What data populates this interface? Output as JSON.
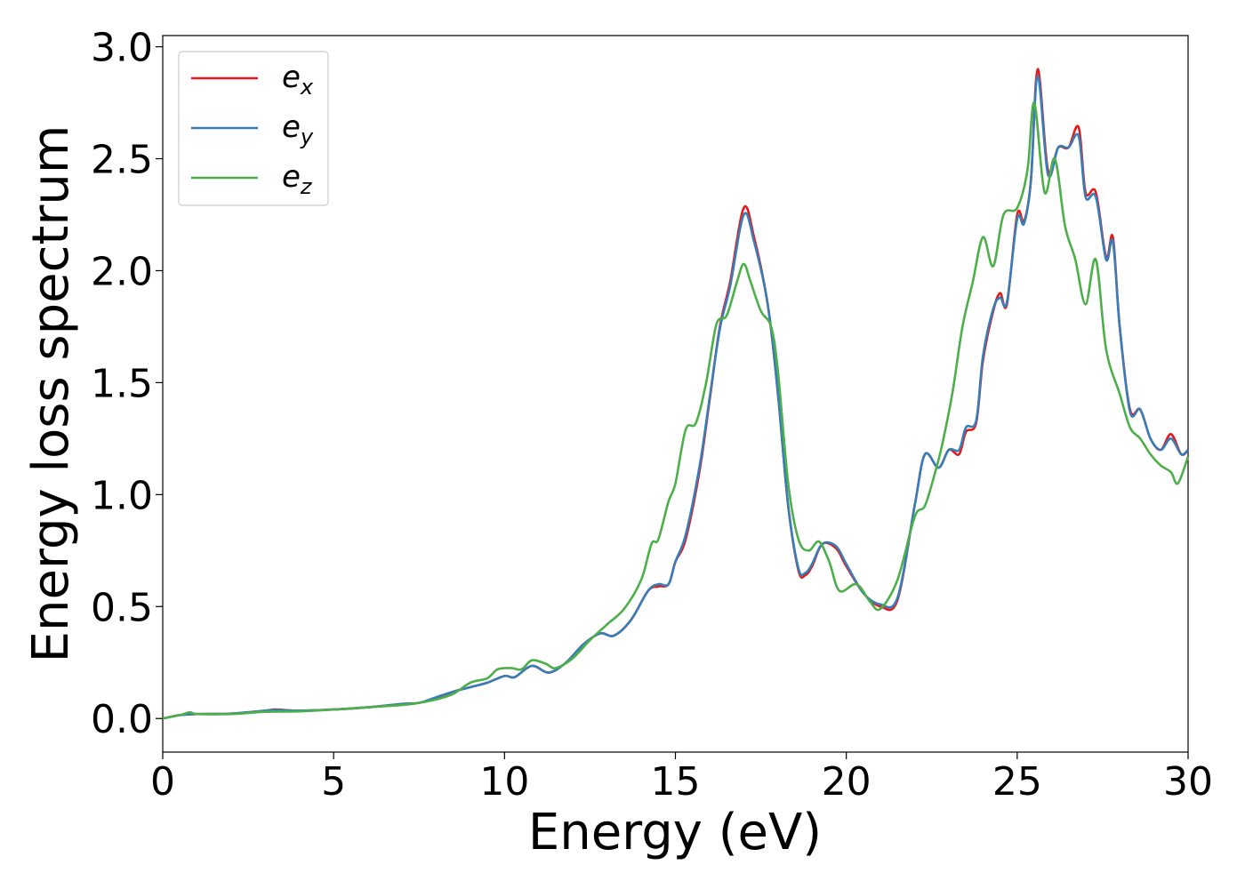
{
  "chart_data": {
    "type": "line",
    "xlabel": "Energy (eV)",
    "ylabel": "Energy loss spectrum",
    "xlim": [
      0,
      30
    ],
    "ylim": [
      -0.15,
      3.05
    ],
    "xticks": [
      0,
      5,
      10,
      15,
      20,
      25,
      30
    ],
    "yticks": [
      0.0,
      0.5,
      1.0,
      1.5,
      2.0,
      2.5,
      3.0
    ],
    "xtick_labels": [
      "0",
      "5",
      "10",
      "15",
      "20",
      "25",
      "30"
    ],
    "ytick_labels": [
      "0.0",
      "0.5",
      "1.0",
      "1.5",
      "2.0",
      "2.5",
      "3.0"
    ],
    "grid": false,
    "legend_position": "top-left",
    "series": [
      {
        "name": "e_x",
        "label_base": "e",
        "label_sub": "x",
        "color": "#e41a1c",
        "points": [
          [
            0,
            0.0
          ],
          [
            0.5,
            0.015
          ],
          [
            1,
            0.02
          ],
          [
            2,
            0.022
          ],
          [
            3,
            0.035
          ],
          [
            3.3,
            0.04
          ],
          [
            4,
            0.035
          ],
          [
            5,
            0.04
          ],
          [
            6,
            0.05
          ],
          [
            7,
            0.065
          ],
          [
            7.5,
            0.07
          ],
          [
            8,
            0.09
          ],
          [
            8.5,
            0.12
          ],
          [
            9,
            0.14
          ],
          [
            9.5,
            0.16
          ],
          [
            10,
            0.19
          ],
          [
            10.3,
            0.185
          ],
          [
            10.8,
            0.235
          ],
          [
            11.3,
            0.205
          ],
          [
            11.8,
            0.25
          ],
          [
            12.3,
            0.33
          ],
          [
            12.8,
            0.38
          ],
          [
            13.2,
            0.37
          ],
          [
            13.7,
            0.44
          ],
          [
            14.2,
            0.57
          ],
          [
            14.5,
            0.59
          ],
          [
            14.8,
            0.6
          ],
          [
            15.0,
            0.7
          ],
          [
            15.3,
            0.8
          ],
          [
            15.7,
            1.1
          ],
          [
            16.0,
            1.42
          ],
          [
            16.3,
            1.75
          ],
          [
            16.6,
            1.95
          ],
          [
            17.0,
            2.28
          ],
          [
            17.3,
            2.15
          ],
          [
            17.7,
            1.85
          ],
          [
            18.0,
            1.45
          ],
          [
            18.3,
            0.95
          ],
          [
            18.6,
            0.66
          ],
          [
            18.8,
            0.64
          ],
          [
            19.0,
            0.68
          ],
          [
            19.3,
            0.78
          ],
          [
            19.7,
            0.76
          ],
          [
            20.0,
            0.68
          ],
          [
            20.5,
            0.56
          ],
          [
            21.0,
            0.5
          ],
          [
            21.5,
            0.53
          ],
          [
            22.0,
            0.95
          ],
          [
            22.3,
            1.18
          ],
          [
            22.7,
            1.12
          ],
          [
            23.0,
            1.2
          ],
          [
            23.3,
            1.18
          ],
          [
            23.5,
            1.28
          ],
          [
            23.8,
            1.32
          ],
          [
            24.0,
            1.6
          ],
          [
            24.3,
            1.82
          ],
          [
            24.5,
            1.9
          ],
          [
            24.7,
            1.85
          ],
          [
            25.0,
            2.25
          ],
          [
            25.2,
            2.22
          ],
          [
            25.4,
            2.4
          ],
          [
            25.6,
            2.9
          ],
          [
            25.9,
            2.45
          ],
          [
            26.2,
            2.55
          ],
          [
            26.5,
            2.55
          ],
          [
            26.8,
            2.64
          ],
          [
            27.0,
            2.35
          ],
          [
            27.3,
            2.35
          ],
          [
            27.6,
            2.06
          ],
          [
            27.8,
            2.15
          ],
          [
            28.0,
            1.75
          ],
          [
            28.3,
            1.38
          ],
          [
            28.6,
            1.38
          ],
          [
            28.9,
            1.25
          ],
          [
            29.2,
            1.2
          ],
          [
            29.5,
            1.27
          ],
          [
            29.8,
            1.18
          ],
          [
            30,
            1.2
          ]
        ]
      },
      {
        "name": "e_y",
        "label_base": "e",
        "label_sub": "y",
        "color": "#377eb8",
        "points": [
          [
            0,
            0.0
          ],
          [
            0.5,
            0.015
          ],
          [
            1,
            0.02
          ],
          [
            2,
            0.022
          ],
          [
            3,
            0.035
          ],
          [
            3.3,
            0.038
          ],
          [
            4,
            0.035
          ],
          [
            5,
            0.04
          ],
          [
            6,
            0.05
          ],
          [
            7,
            0.065
          ],
          [
            7.5,
            0.07
          ],
          [
            8,
            0.095
          ],
          [
            8.5,
            0.12
          ],
          [
            9,
            0.14
          ],
          [
            9.5,
            0.16
          ],
          [
            10,
            0.19
          ],
          [
            10.3,
            0.185
          ],
          [
            10.8,
            0.235
          ],
          [
            11.3,
            0.205
          ],
          [
            11.8,
            0.25
          ],
          [
            12.3,
            0.33
          ],
          [
            12.8,
            0.38
          ],
          [
            13.2,
            0.37
          ],
          [
            13.7,
            0.44
          ],
          [
            14.2,
            0.57
          ],
          [
            14.5,
            0.6
          ],
          [
            14.8,
            0.6
          ],
          [
            15.0,
            0.7
          ],
          [
            15.3,
            0.82
          ],
          [
            15.7,
            1.12
          ],
          [
            16.0,
            1.43
          ],
          [
            16.3,
            1.74
          ],
          [
            16.6,
            1.93
          ],
          [
            17.0,
            2.25
          ],
          [
            17.3,
            2.13
          ],
          [
            17.7,
            1.85
          ],
          [
            18.0,
            1.45
          ],
          [
            18.3,
            0.95
          ],
          [
            18.6,
            0.67
          ],
          [
            18.8,
            0.65
          ],
          [
            19.0,
            0.69
          ],
          [
            19.3,
            0.78
          ],
          [
            19.7,
            0.77
          ],
          [
            20.0,
            0.69
          ],
          [
            20.5,
            0.56
          ],
          [
            21.0,
            0.51
          ],
          [
            21.5,
            0.54
          ],
          [
            22.0,
            0.95
          ],
          [
            22.3,
            1.18
          ],
          [
            22.7,
            1.12
          ],
          [
            23.0,
            1.2
          ],
          [
            23.3,
            1.2
          ],
          [
            23.5,
            1.3
          ],
          [
            23.8,
            1.33
          ],
          [
            24.0,
            1.62
          ],
          [
            24.3,
            1.83
          ],
          [
            24.5,
            1.88
          ],
          [
            24.7,
            1.86
          ],
          [
            25.0,
            2.23
          ],
          [
            25.2,
            2.21
          ],
          [
            25.4,
            2.4
          ],
          [
            25.6,
            2.87
          ],
          [
            25.9,
            2.43
          ],
          [
            26.2,
            2.55
          ],
          [
            26.5,
            2.55
          ],
          [
            26.8,
            2.6
          ],
          [
            27.0,
            2.33
          ],
          [
            27.3,
            2.33
          ],
          [
            27.6,
            2.05
          ],
          [
            27.8,
            2.13
          ],
          [
            28.0,
            1.75
          ],
          [
            28.3,
            1.37
          ],
          [
            28.6,
            1.38
          ],
          [
            28.9,
            1.25
          ],
          [
            29.2,
            1.2
          ],
          [
            29.5,
            1.25
          ],
          [
            29.8,
            1.18
          ],
          [
            30,
            1.2
          ]
        ]
      },
      {
        "name": "e_z",
        "label_base": "e",
        "label_sub": "z",
        "color": "#4daf4a",
        "points": [
          [
            0,
            0.0
          ],
          [
            0.5,
            0.015
          ],
          [
            0.8,
            0.028
          ],
          [
            1,
            0.02
          ],
          [
            2,
            0.02
          ],
          [
            3,
            0.03
          ],
          [
            4,
            0.032
          ],
          [
            5,
            0.04
          ],
          [
            6,
            0.05
          ],
          [
            7,
            0.06
          ],
          [
            7.5,
            0.07
          ],
          [
            8,
            0.085
          ],
          [
            8.5,
            0.11
          ],
          [
            9,
            0.16
          ],
          [
            9.5,
            0.18
          ],
          [
            9.8,
            0.22
          ],
          [
            10.2,
            0.225
          ],
          [
            10.5,
            0.22
          ],
          [
            10.8,
            0.26
          ],
          [
            11.2,
            0.245
          ],
          [
            11.5,
            0.225
          ],
          [
            12.0,
            0.27
          ],
          [
            12.5,
            0.35
          ],
          [
            13.0,
            0.42
          ],
          [
            13.5,
            0.49
          ],
          [
            14.0,
            0.62
          ],
          [
            14.3,
            0.78
          ],
          [
            14.5,
            0.8
          ],
          [
            14.8,
            0.97
          ],
          [
            15.0,
            1.05
          ],
          [
            15.3,
            1.29
          ],
          [
            15.6,
            1.32
          ],
          [
            15.9,
            1.5
          ],
          [
            16.2,
            1.76
          ],
          [
            16.5,
            1.8
          ],
          [
            16.8,
            1.95
          ],
          [
            17.0,
            2.03
          ],
          [
            17.2,
            1.95
          ],
          [
            17.5,
            1.82
          ],
          [
            17.8,
            1.75
          ],
          [
            18.0,
            1.55
          ],
          [
            18.3,
            1.05
          ],
          [
            18.6,
            0.8
          ],
          [
            18.9,
            0.75
          ],
          [
            19.2,
            0.79
          ],
          [
            19.5,
            0.7
          ],
          [
            19.8,
            0.57
          ],
          [
            20.3,
            0.6
          ],
          [
            20.7,
            0.52
          ],
          [
            21.0,
            0.49
          ],
          [
            21.5,
            0.62
          ],
          [
            22.0,
            0.9
          ],
          [
            22.3,
            0.95
          ],
          [
            22.6,
            1.1
          ],
          [
            22.8,
            1.22
          ],
          [
            23.1,
            1.45
          ],
          [
            23.4,
            1.75
          ],
          [
            23.7,
            1.95
          ],
          [
            24.0,
            2.15
          ],
          [
            24.3,
            2.02
          ],
          [
            24.6,
            2.25
          ],
          [
            25.0,
            2.28
          ],
          [
            25.3,
            2.45
          ],
          [
            25.5,
            2.75
          ],
          [
            25.8,
            2.35
          ],
          [
            26.1,
            2.5
          ],
          [
            26.4,
            2.2
          ],
          [
            26.7,
            2.05
          ],
          [
            27.0,
            1.85
          ],
          [
            27.3,
            2.05
          ],
          [
            27.6,
            1.65
          ],
          [
            28.0,
            1.45
          ],
          [
            28.3,
            1.3
          ],
          [
            28.6,
            1.25
          ],
          [
            28.9,
            1.18
          ],
          [
            29.2,
            1.13
          ],
          [
            29.5,
            1.1
          ],
          [
            29.7,
            1.05
          ],
          [
            30,
            1.17
          ]
        ]
      }
    ]
  }
}
